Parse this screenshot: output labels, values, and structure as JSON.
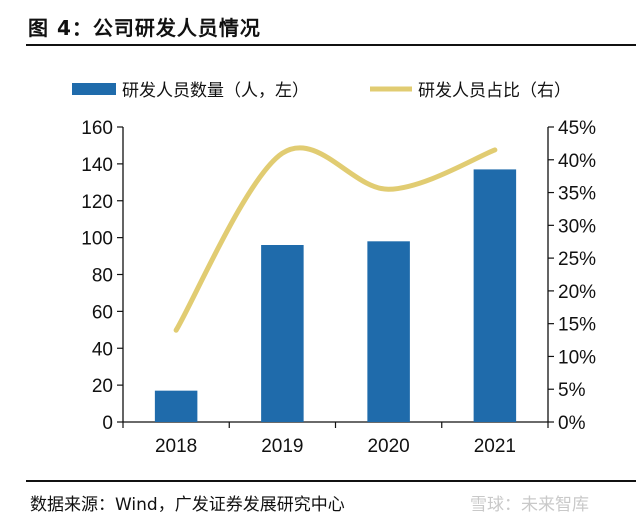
{
  "figure": {
    "title": "图 4：公司研发人员情况",
    "source": "数据来源：Wind，广发证券发展研究中心",
    "watermark": "雪球：未来智库"
  },
  "chart_data": {
    "type": "bar",
    "categories": [
      "2018",
      "2019",
      "2020",
      "2021"
    ],
    "series": [
      {
        "name": "研发人员数量（人，左）",
        "type": "bar",
        "axis": "left",
        "color": "#1f6bab",
        "values": [
          17,
          96,
          98,
          137
        ]
      },
      {
        "name": "研发人员占比（右）",
        "type": "line",
        "axis": "right",
        "color": "#e1cc72",
        "values": [
          0.14,
          0.41,
          0.355,
          0.415
        ]
      }
    ],
    "y_left": {
      "ylim": [
        0,
        160
      ],
      "ticks": [
        0,
        20,
        40,
        60,
        80,
        100,
        120,
        140,
        160
      ]
    },
    "y_right": {
      "ylim": [
        0,
        0.45
      ],
      "ticks": [
        "0%",
        "5%",
        "10%",
        "15%",
        "20%",
        "25%",
        "30%",
        "35%",
        "40%",
        "45%"
      ]
    },
    "legend_position": "top",
    "grid": false
  }
}
